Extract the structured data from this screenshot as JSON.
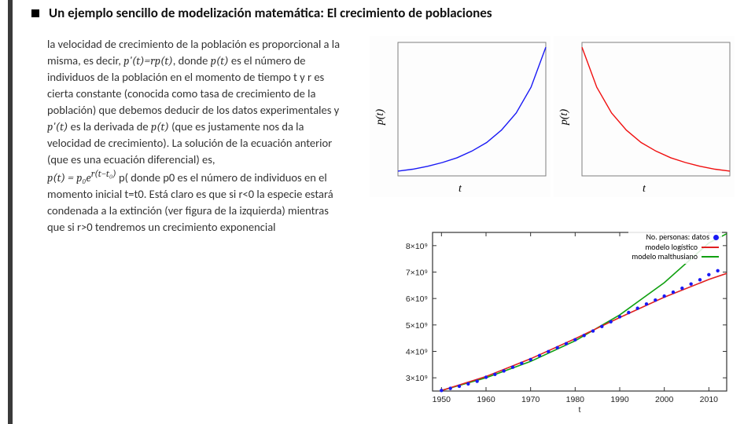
{
  "title": "Un ejemplo sencillo de modelización matemática: El crecimiento de poblaciones",
  "body": {
    "p1": "la velocidad de crecimiento de la población es proporcional a la misma, es decir, ",
    "eq1": "p'(t)=rp(t)",
    "p2": ", donde ",
    "eq2": "p(t)",
    "p3": " es el número de individuos de la población en el momento de tiempo t y r es cierta constante (conocida como tasa de crecimiento de la población) que debemos deducir de los datos experimentales y ",
    "eq3": "p'(t)",
    "p4": " es la derivada de ",
    "eq4": "p(t)",
    "p5": " (que es justamente nos da la velocidad de crecimiento). La solución de la ecuación anterior (que es una ecuación diferencial) es,",
    "eq5": "p(t) =  p₀e",
    "eq5sup": "r(t−t₀)",
    "p6": " p( donde p0 es el número de individuos en el momento inicial t=t0. Está claro es que si r<0 la especie estará condenada a la extinción (ver figura de la izquierda) mientras que si r>0 tendremos un crecimiento exponencial"
  },
  "growth_chart": {
    "type": "line",
    "xlabel": "t",
    "ylabel": "p(t)",
    "line_color": "#1a1af5",
    "line_width": 1.4,
    "frame_color": "#808080",
    "background": "#ffffff",
    "points": [
      [
        0,
        15
      ],
      [
        10,
        17
      ],
      [
        20,
        20
      ],
      [
        30,
        24
      ],
      [
        40,
        29
      ],
      [
        50,
        36
      ],
      [
        60,
        45
      ],
      [
        70,
        58
      ],
      [
        80,
        76
      ],
      [
        90,
        103
      ],
      [
        100,
        145
      ]
    ]
  },
  "decay_chart": {
    "type": "line",
    "xlabel": "t",
    "ylabel": "p(t)",
    "line_color": "#f01010",
    "line_width": 1.4,
    "frame_color": "#808080",
    "background": "#ffffff",
    "points": [
      [
        0,
        145
      ],
      [
        10,
        103
      ],
      [
        20,
        76
      ],
      [
        30,
        58
      ],
      [
        40,
        45
      ],
      [
        50,
        36
      ],
      [
        60,
        29
      ],
      [
        70,
        24
      ],
      [
        80,
        20
      ],
      [
        90,
        17
      ],
      [
        100,
        15
      ]
    ]
  },
  "population_chart": {
    "type": "line+scatter",
    "xlabel": "t",
    "yticks": [
      "3×10⁹",
      "4×10⁹",
      "5×10⁹",
      "6×10⁹",
      "7×10⁹",
      "8×10⁹"
    ],
    "ytick_values": [
      3000000000.0,
      4000000000.0,
      5000000000.0,
      6000000000.0,
      7000000000.0,
      8000000000.0
    ],
    "xticks": [
      1950,
      1960,
      1970,
      1980,
      1990,
      2000,
      2010
    ],
    "xlim": [
      1948,
      2014
    ],
    "ylim": [
      2500000000.0,
      8500000000.0
    ],
    "background": "#ffffff",
    "frame_color": "#333333",
    "grid": false,
    "legend": [
      {
        "label": "No. personas: datos",
        "type": "dot",
        "color": "#1a1af5"
      },
      {
        "label": "modelo logístico",
        "type": "line",
        "color": "#e02020"
      },
      {
        "label": "modelo malthusiano",
        "type": "line",
        "color": "#10a010"
      }
    ],
    "data_points": {
      "color": "#1a1af5",
      "radius": 2.2,
      "points": [
        [
          1950,
          2520000000.0
        ],
        [
          1952,
          2600000000.0
        ],
        [
          1954,
          2680000000.0
        ],
        [
          1956,
          2770000000.0
        ],
        [
          1958,
          2870000000.0
        ],
        [
          1960,
          3020000000.0
        ],
        [
          1962,
          3130000000.0
        ],
        [
          1964,
          3260000000.0
        ],
        [
          1966,
          3400000000.0
        ],
        [
          1968,
          3550000000.0
        ],
        [
          1970,
          3690000000.0
        ],
        [
          1972,
          3840000000.0
        ],
        [
          1974,
          3990000000.0
        ],
        [
          1976,
          4140000000.0
        ],
        [
          1978,
          4290000000.0
        ],
        [
          1980,
          4440000000.0
        ],
        [
          1982,
          4600000000.0
        ],
        [
          1984,
          4770000000.0
        ],
        [
          1986,
          4940000000.0
        ],
        [
          1988,
          5120000000.0
        ],
        [
          1990,
          5310000000.0
        ],
        [
          1992,
          5470000000.0
        ],
        [
          1994,
          5630000000.0
        ],
        [
          1996,
          5790000000.0
        ],
        [
          1998,
          5940000000.0
        ],
        [
          2000,
          6090000000.0
        ],
        [
          2002,
          6240000000.0
        ],
        [
          2004,
          6390000000.0
        ],
        [
          2006,
          6550000000.0
        ],
        [
          2008,
          6710000000.0
        ],
        [
          2010,
          6900000000.0
        ],
        [
          2012,
          7050000000.0
        ]
      ]
    },
    "logistic": {
      "color": "#e02020",
      "width": 1.6,
      "points": [
        [
          1950,
          2520000000.0
        ],
        [
          1960,
          3050000000.0
        ],
        [
          1970,
          3720000000.0
        ],
        [
          1980,
          4480000000.0
        ],
        [
          1990,
          5280000000.0
        ],
        [
          2000,
          6050000000.0
        ],
        [
          2010,
          6720000000.0
        ],
        [
          2014,
          6950000000.0
        ]
      ]
    },
    "malthus": {
      "color": "#10a010",
      "width": 1.6,
      "points": [
        [
          1950,
          2520000000.0
        ],
        [
          1960,
          3000000000.0
        ],
        [
          1970,
          3620000000.0
        ],
        [
          1980,
          4400000000.0
        ],
        [
          1990,
          5380000000.0
        ],
        [
          2000,
          6600000000.0
        ],
        [
          2010,
          8100000000.0
        ],
        [
          2014,
          8450000000.0
        ]
      ]
    }
  }
}
